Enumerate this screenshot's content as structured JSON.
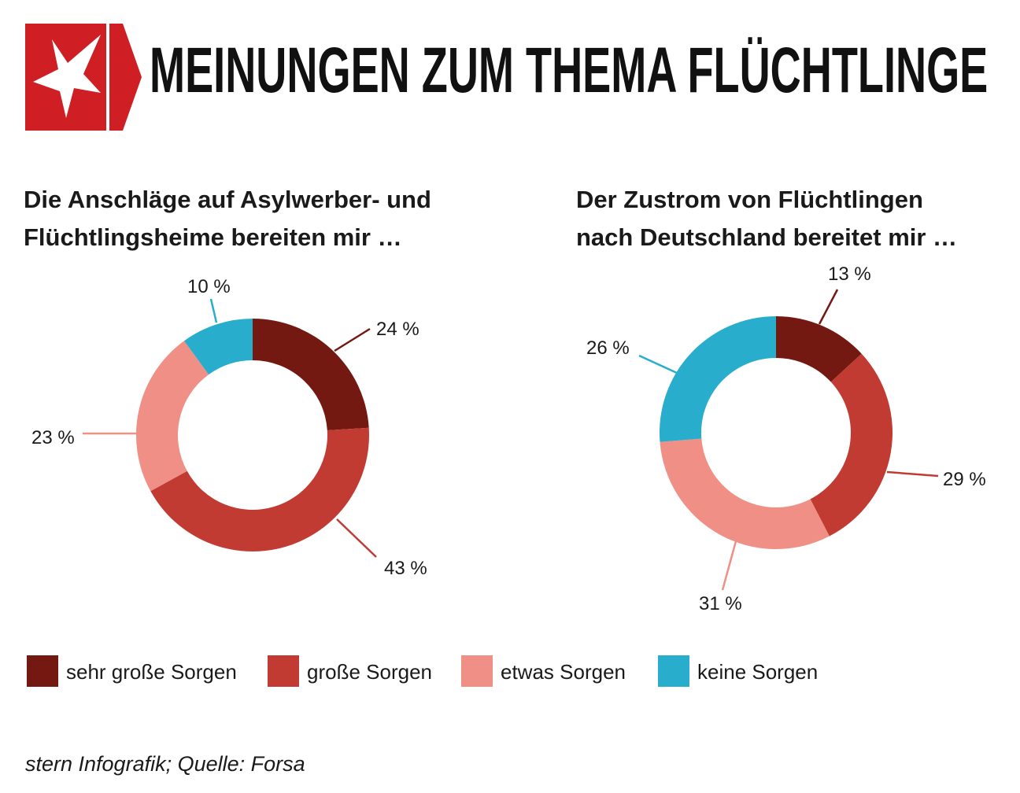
{
  "title": "MEINUNGEN ZUM THEMA FLÜCHTLINGE",
  "source": "stern Infografik; Quelle: Forsa",
  "colors": {
    "brand": "#cf1f25",
    "sehr_grosse": "#731912",
    "grosse": "#c13b33",
    "etwas": "#f08f85",
    "keine": "#29adcc"
  },
  "logo": {
    "icon": "stern-star-icon"
  },
  "chart_data": [
    {
      "type": "pie",
      "title_lines": [
        "Die Anschläge auf Asylwerber- und",
        "Flüchtlingsheime bereiten mir …"
      ],
      "categories": [
        "sehr große Sorgen",
        "große Sorgen",
        "etwas Sorgen",
        "keine Sorgen"
      ],
      "values": [
        24,
        43,
        23,
        10
      ],
      "labels": [
        "24 %",
        "43 %",
        "23 %",
        "10 %"
      ]
    },
    {
      "type": "pie",
      "title_lines": [
        "Der Zustrom von Flüchtlingen",
        "nach Deutschland bereitet mir …"
      ],
      "categories": [
        "sehr große Sorgen",
        "große Sorgen",
        "etwas Sorgen",
        "keine Sorgen"
      ],
      "values": [
        13,
        29,
        31,
        26
      ],
      "labels": [
        "13 %",
        "29 %",
        "31 %",
        "26 %"
      ]
    }
  ],
  "legend": [
    {
      "label": "sehr große Sorgen",
      "color": "#731912"
    },
    {
      "label": "große Sorgen",
      "color": "#c13b33"
    },
    {
      "label": "etwas Sorgen",
      "color": "#f08f85"
    },
    {
      "label": "keine Sorgen",
      "color": "#29adcc"
    }
  ]
}
